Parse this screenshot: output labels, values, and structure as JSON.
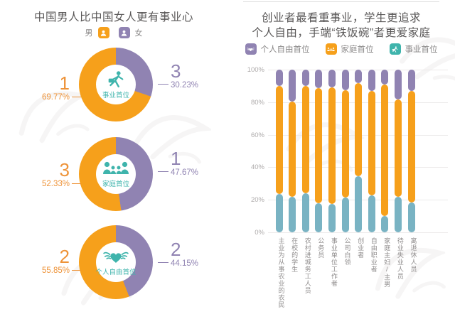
{
  "colors": {
    "orange": "#F6A01B",
    "orange_text": "#EE9338",
    "purple": "#9083B2",
    "teal": "#79B3C3",
    "teal_icon": "#3FB4AC"
  },
  "left_panel": {
    "title": "中国男人比中国女人更有事业心",
    "legend": {
      "male": "男",
      "female": "女"
    },
    "donuts": [
      {
        "label": "事业首位",
        "icon": "career-icon",
        "left_rank": "1",
        "left_pct": "69.77%",
        "right_rank": "3",
        "right_pct": "30.23%",
        "male_value": 69.77,
        "female_value": 30.23
      },
      {
        "label": "家庭首位",
        "icon": "family-icon",
        "left_rank": "3",
        "left_pct": "52.33%",
        "right_rank": "1",
        "right_pct": "47.67%",
        "male_value": 52.33,
        "female_value": 47.67
      },
      {
        "label": "个人自由首位",
        "icon": "winged-heart-icon",
        "left_rank": "2",
        "left_pct": "55.85%",
        "right_rank": "2",
        "right_pct": "44.15%",
        "male_value": 55.85,
        "female_value": 44.15
      }
    ]
  },
  "right_panel": {
    "title_line1": "创业者最看重事业，学生更追求",
    "title_line2": "个人自由，手端“铁饭碗”者更爱家庭",
    "legend": [
      {
        "label": "个人自由首位",
        "color_key": "purple",
        "icon": "winged-heart-icon"
      },
      {
        "label": "家庭首位",
        "color_key": "orange",
        "icon": "family-icon"
      },
      {
        "label": "事业首位",
        "color_key": "teal_icon",
        "icon": "career-icon"
      }
    ],
    "y_ticks": [
      "100%",
      "80%",
      "60%",
      "40%",
      "20%",
      "0%"
    ]
  },
  "chart_data": [
    {
      "type": "pie",
      "title": "事业首位",
      "labels": [
        "男",
        "女"
      ],
      "values": [
        69.77,
        30.23
      ],
      "ranks": [
        "1",
        "3"
      ],
      "colors": [
        "#F6A01B",
        "#9083B2"
      ]
    },
    {
      "type": "pie",
      "title": "家庭首位",
      "labels": [
        "男",
        "女"
      ],
      "values": [
        52.33,
        47.67
      ],
      "ranks": [
        "3",
        "1"
      ],
      "colors": [
        "#F6A01B",
        "#9083B2"
      ]
    },
    {
      "type": "pie",
      "title": "个人自由首位",
      "labels": [
        "男",
        "女"
      ],
      "values": [
        55.85,
        44.15
      ],
      "ranks": [
        "2",
        "2"
      ],
      "colors": [
        "#F6A01B",
        "#9083B2"
      ]
    },
    {
      "type": "bar",
      "stacked": true,
      "title": "创业者最看重事业，学生更追求个人自由，手端“铁饭碗”者更爱家庭",
      "categories": [
        "主业为从事农业的农民",
        "在校的学生",
        "农村进城务工人员",
        "公务员",
        "事业单位工作者",
        "公司白领",
        "创业者",
        "自由职业者",
        "家庭主妇/主男",
        "待业失业人员",
        "离退休人员"
      ],
      "series": [
        {
          "name": "事业首位",
          "color": "#79B3C3",
          "values": [
            23.5,
            22,
            24,
            18,
            17.5,
            21.5,
            34.5,
            22.5,
            10,
            22,
            18.5
          ]
        },
        {
          "name": "家庭首位",
          "color": "#F6A01B",
          "values": [
            66.5,
            58.5,
            66,
            70.5,
            71.5,
            66,
            57,
            64.5,
            81,
            59.5,
            68.5
          ]
        },
        {
          "name": "个人自由首位",
          "color": "#9083B2",
          "values": [
            10,
            19.5,
            10,
            11.5,
            11,
            12.5,
            8.5,
            13,
            9,
            18.5,
            13
          ]
        }
      ],
      "ylim": [
        0,
        100
      ],
      "y_ticks": [
        "0%",
        "20%",
        "40%",
        "60%",
        "80%",
        "100%"
      ],
      "grid": true,
      "legend_position": "top"
    }
  ]
}
